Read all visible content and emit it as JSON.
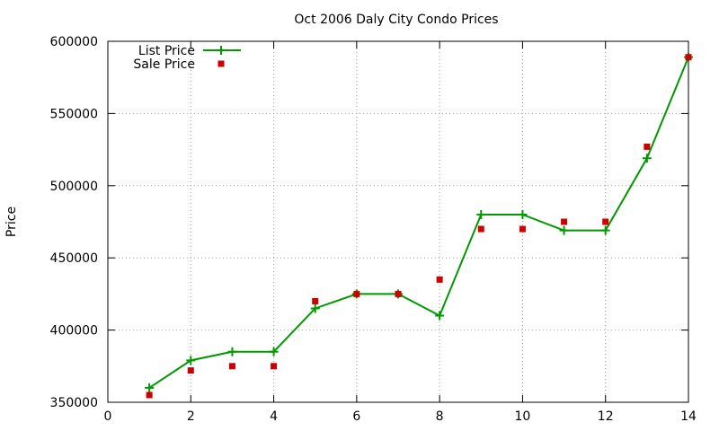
{
  "chart_data": {
    "type": "line",
    "title": "Oct 2006 Daly City Condo Prices",
    "xlabel": "",
    "ylabel": "Price",
    "xlim": [
      0,
      14
    ],
    "ylim": [
      350000,
      600000
    ],
    "x_ticks": [
      0,
      2,
      4,
      6,
      8,
      10,
      12,
      14
    ],
    "y_ticks": [
      350000,
      400000,
      450000,
      500000,
      550000,
      600000
    ],
    "grid": true,
    "legend_position": "top-left",
    "series": [
      {
        "name": "List Price",
        "style": "line with plus markers",
        "color": "#009900",
        "x": [
          1,
          2,
          3,
          4,
          5,
          6,
          7,
          8,
          9,
          10,
          11,
          12,
          13,
          14
        ],
        "values": [
          360000,
          379000,
          385000,
          385000,
          415000,
          425000,
          425000,
          410000,
          480000,
          480000,
          469000,
          469000,
          519000,
          589000
        ]
      },
      {
        "name": "Sale Price",
        "style": "square markers",
        "color": "#cc0000",
        "x": [
          1,
          2,
          3,
          4,
          5,
          6,
          7,
          8,
          9,
          10,
          11,
          12,
          13,
          14
        ],
        "values": [
          355000,
          372000,
          375000,
          375000,
          420000,
          425000,
          425000,
          435000,
          470000,
          470000,
          475000,
          475000,
          527000,
          589000
        ]
      }
    ]
  }
}
